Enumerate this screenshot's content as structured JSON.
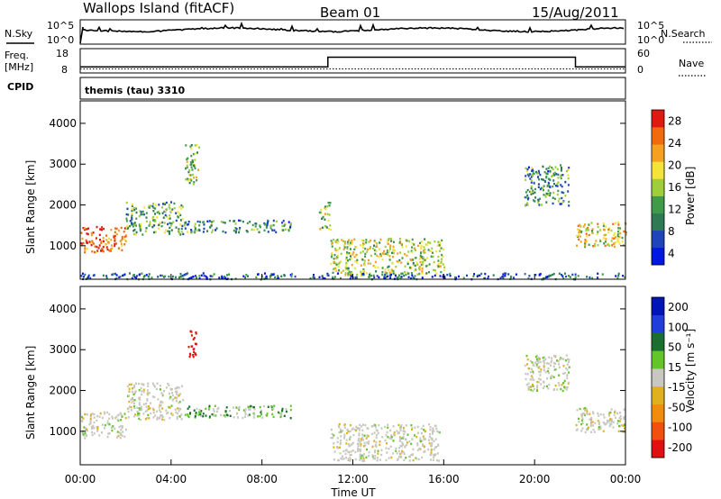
{
  "header": {
    "station": "Wallops Island (fitACF)",
    "beam": "Beam 01",
    "date": "15/Aug/2011"
  },
  "colors": {
    "power_scale": [
      "#0018e0",
      "#1f46b8",
      "#2e7a55",
      "#3f9a4a",
      "#9fce3c",
      "#f5e23a",
      "#f5a020",
      "#f06a10",
      "#e01a10"
    ],
    "velocity_scale": [
      "#0015b5",
      "#1f3fd8",
      "#1a6e2e",
      "#62c52a",
      "#c8c8c0",
      "#e0b020",
      "#f08c10",
      "#f05010",
      "#e01010"
    ],
    "noise_line": "#000000"
  },
  "side_panels": {
    "nsky_label": "N.Sky",
    "nsky_ticks": [
      "10^5",
      "10^0"
    ],
    "nsearch_label": "N.Search",
    "nsearch_ticks": [
      "10^5",
      "10^0"
    ],
    "freq_label_line1": "Freq.",
    "freq_label_line2": "[MHz]",
    "freq_ticks": [
      "18",
      "8"
    ],
    "nave_label": "Nave",
    "nave_ticks": [
      "60",
      "0"
    ],
    "cpid_label": "CPID",
    "cpid_value": "themis (tau) 3310"
  },
  "chart_data": [
    {
      "type": "heatmap",
      "panel": "power",
      "ylabel": "Slant Range [km]",
      "xlabel": "",
      "x_tick_labels": [
        "00:00",
        "04:00",
        "08:00",
        "12:00",
        "16:00",
        "20:00",
        "00:00"
      ],
      "x_range_hours": [
        0,
        24
      ],
      "y_range_km": [
        180,
        4550
      ],
      "y_tick_labels": [
        "1000",
        "2000",
        "3000",
        "4000"
      ],
      "colorbar_label": "Power [dB]",
      "colorbar_ticks": [
        "28",
        "24",
        "20",
        "16",
        "12",
        "8",
        "4"
      ],
      "colorbar_range": [
        0,
        30
      ],
      "regions": [
        {
          "t0": 0.0,
          "t1": 2.0,
          "r0": 850,
          "r1": 1500,
          "intensity": 26
        },
        {
          "t0": 2.0,
          "t1": 4.5,
          "r0": 1300,
          "r1": 2100,
          "intensity": 12
        },
        {
          "t0": 4.5,
          "t1": 9.3,
          "r0": 1350,
          "r1": 1650,
          "intensity": 10
        },
        {
          "t0": 4.6,
          "t1": 5.2,
          "r0": 2500,
          "r1": 3500,
          "intensity": 14
        },
        {
          "t0": 10.5,
          "t1": 11.0,
          "r0": 1400,
          "r1": 2100,
          "intensity": 14
        },
        {
          "t0": 11.0,
          "t1": 16.0,
          "r0": 300,
          "r1": 1200,
          "intensity": 16
        },
        {
          "t0": 19.5,
          "t1": 21.5,
          "r0": 2000,
          "r1": 3000,
          "intensity": 10
        },
        {
          "t0": 21.8,
          "t1": 24.0,
          "r0": 1000,
          "r1": 1600,
          "intensity": 18
        },
        {
          "t0": 0.0,
          "t1": 24.0,
          "r0": 200,
          "r1": 350,
          "intensity": 6
        }
      ]
    },
    {
      "type": "heatmap",
      "panel": "velocity",
      "ylabel": "Slant Range [km]",
      "xlabel": "Time UT",
      "x_tick_labels": [
        "00:00",
        "04:00",
        "08:00",
        "12:00",
        "16:00",
        "20:00",
        "00:00"
      ],
      "x_range_hours": [
        0,
        24
      ],
      "y_range_km": [
        180,
        4550
      ],
      "y_tick_labels": [
        "1000",
        "2000",
        "3000",
        "4000"
      ],
      "colorbar_label": "Velocity [m s⁻¹]",
      "colorbar_ticks": [
        "200",
        "100",
        "50",
        "15",
        "-15",
        "-50",
        "-100",
        "-200"
      ],
      "regions": [
        {
          "t0": 0.0,
          "t1": 2.0,
          "r0": 850,
          "r1": 1500,
          "velocity": 0
        },
        {
          "t0": 2.0,
          "t1": 4.5,
          "r0": 1300,
          "r1": 2200,
          "velocity": 0
        },
        {
          "t0": 4.5,
          "t1": 9.3,
          "r0": 1350,
          "r1": 1650,
          "velocity": 20
        },
        {
          "t0": 4.7,
          "t1": 5.1,
          "r0": 2800,
          "r1": 3500,
          "velocity": -200
        },
        {
          "t0": 11.0,
          "t1": 15.8,
          "r0": 300,
          "r1": 1200,
          "velocity": 0
        },
        {
          "t0": 19.5,
          "t1": 21.5,
          "r0": 2000,
          "r1": 2900,
          "velocity": 0
        },
        {
          "t0": 21.8,
          "t1": 24.0,
          "r0": 1000,
          "r1": 1600,
          "velocity": 0
        }
      ]
    },
    {
      "type": "line",
      "panel": "noise",
      "series": [
        {
          "name": "N.Sky",
          "style": "solid"
        },
        {
          "name": "N.Search",
          "style": "dotted"
        }
      ]
    },
    {
      "type": "line",
      "panel": "freq-nave",
      "series": [
        {
          "name": "Freq.",
          "style": "solid",
          "points": [
            [
              0,
              10.5
            ],
            [
              10.9,
              10.5
            ],
            [
              10.9,
              14.5
            ],
            [
              21.8,
              14.5
            ],
            [
              21.8,
              10.5
            ],
            [
              24,
              10.5
            ]
          ]
        },
        {
          "name": "Nave",
          "style": "dotted",
          "points": [
            [
              0,
              10
            ],
            [
              24,
              10
            ]
          ]
        }
      ]
    }
  ]
}
